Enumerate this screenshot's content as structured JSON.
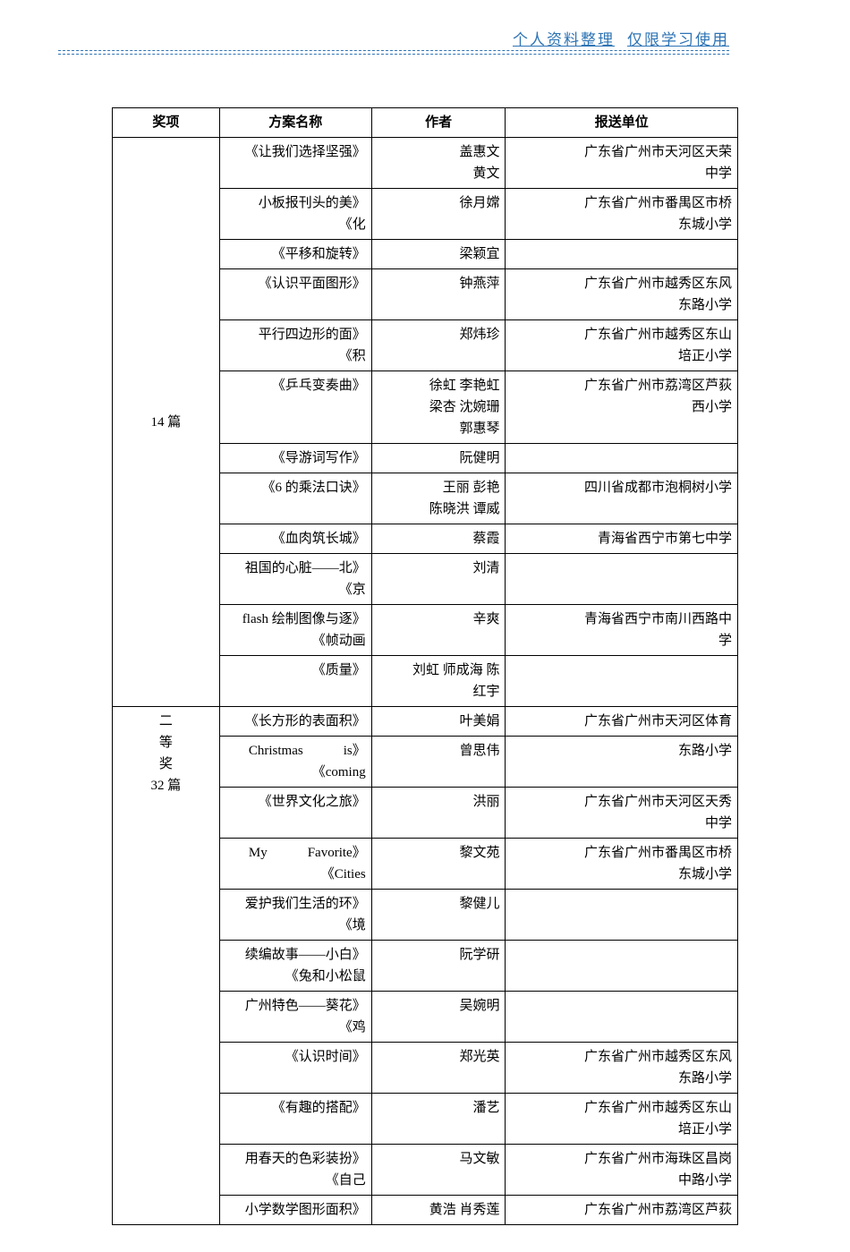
{
  "header": {
    "left": "个人资料整理",
    "right": "仅限学习使用"
  },
  "table": {
    "headers": {
      "award": "奖项",
      "plan": "方案名称",
      "author": "作者",
      "org": "报送单位"
    },
    "groups": [
      {
        "award_lines": [
          "14 篇"
        ],
        "rows": [
          {
            "plan_lines": [
              "《让我们选择坚强》"
            ],
            "author_lines": [
              "盖惠文",
              "黄文"
            ],
            "org_lines": [
              "广东省广州市天河区天荣",
              "中学"
            ]
          },
          {
            "plan_lines": [
              "小板报刊头的美》",
              "《化"
            ],
            "author_lines": [
              "徐月嫦"
            ],
            "org_lines": [
              "广东省广州市番禺区市桥",
              "东城小学"
            ]
          },
          {
            "plan_lines": [
              "《平移和旋转》"
            ],
            "author_lines": [
              "梁颖宜"
            ],
            "org_lines": [
              ""
            ]
          },
          {
            "plan_lines": [
              "《认识平面图形》"
            ],
            "author_lines": [
              "钟燕萍"
            ],
            "org_lines": [
              "广东省广州市越秀区东风",
              "东路小学"
            ]
          },
          {
            "plan_lines": [
              "平行四边形的面》",
              "《积"
            ],
            "author_lines": [
              "郑炜珍"
            ],
            "org_lines": [
              "广东省广州市越秀区东山",
              "培正小学"
            ]
          },
          {
            "plan_lines": [
              "《乒乓变奏曲》"
            ],
            "author_lines": [
              "徐虹 李艳虹",
              "梁杏 沈婉珊",
              "郭惠琴"
            ],
            "org_lines": [
              "广东省广州市荔湾区芦荻",
              "西小学"
            ]
          },
          {
            "plan_lines": [
              "《导游词写作》"
            ],
            "author_lines": [
              "阮健明"
            ],
            "org_lines": [
              ""
            ]
          },
          {
            "plan_lines": [
              "《6 的乘法口诀》"
            ],
            "author_lines": [
              "王丽 彭艳",
              "陈晓洪 谭威"
            ],
            "org_lines": [
              "四川省成都市泡桐树小学"
            ]
          },
          {
            "plan_lines": [
              "《血肉筑长城》"
            ],
            "author_lines": [
              "蔡霞"
            ],
            "org_lines": [
              "青海省西宁市第七中学"
            ]
          },
          {
            "plan_lines": [
              "祖国的心脏――北》",
              "《京"
            ],
            "author_lines": [
              "刘清"
            ],
            "org_lines": [
              ""
            ]
          },
          {
            "plan_lines": [
              "flash 绘制图像与逐》",
              "《帧动画"
            ],
            "author_lines": [
              "辛爽"
            ],
            "org_lines": [
              "青海省西宁市南川西路中",
              "学"
            ]
          },
          {
            "plan_lines": [
              "《质量》"
            ],
            "author_lines": [
              "刘虹 师成海 陈",
              "红宇"
            ],
            "org_lines": [
              ""
            ]
          }
        ]
      },
      {
        "award_lines": [
          "二",
          "等",
          "奖",
          "32 篇"
        ],
        "rows": [
          {
            "plan_lines": [
              "《长方形的表面积》"
            ],
            "author_lines": [
              "叶美娟"
            ],
            "org_lines": [
              "广东省广州市天河区体育"
            ]
          },
          {
            "plan_lines": [
              "Christmas　　　is》",
              "《coming"
            ],
            "author_lines": [
              "曾思伟"
            ],
            "org_lines": [
              "东路小学"
            ]
          },
          {
            "plan_lines": [
              "《世界文化之旅》"
            ],
            "author_lines": [
              "洪丽"
            ],
            "org_lines": [
              "广东省广州市天河区天秀",
              "中学"
            ]
          },
          {
            "plan_lines": [
              "My　　　Favorite》",
              "《Cities"
            ],
            "author_lines": [
              "黎文苑"
            ],
            "org_lines": [
              "广东省广州市番禺区市桥",
              "东城小学"
            ]
          },
          {
            "plan_lines": [
              "爱护我们生活的环》",
              "《境"
            ],
            "author_lines": [
              "黎健儿"
            ],
            "org_lines": [
              ""
            ]
          },
          {
            "plan_lines": [
              "续编故事――小白》",
              "《兔和小松鼠"
            ],
            "author_lines": [
              "阮学研"
            ],
            "org_lines": [
              ""
            ]
          },
          {
            "plan_lines": [
              "广州特色――葵花》",
              "《鸡"
            ],
            "author_lines": [
              "吴婉明"
            ],
            "org_lines": [
              ""
            ]
          },
          {
            "plan_lines": [
              "《认识时间》"
            ],
            "author_lines": [
              "郑光英"
            ],
            "org_lines": [
              "广东省广州市越秀区东风",
              "东路小学"
            ]
          },
          {
            "plan_lines": [
              "《有趣的搭配》"
            ],
            "author_lines": [
              "潘艺"
            ],
            "org_lines": [
              "广东省广州市越秀区东山",
              "培正小学"
            ]
          },
          {
            "plan_lines": [
              "用春天的色彩装扮》",
              "《自己"
            ],
            "author_lines": [
              "马文敏"
            ],
            "org_lines": [
              "广东省广州市海珠区昌岗",
              "中路小学"
            ]
          },
          {
            "plan_lines": [
              "小学数学图形面积》"
            ],
            "author_lines": [
              "黄浩 肖秀莲"
            ],
            "org_lines": [
              "广东省广州市荔湾区芦荻"
            ]
          }
        ]
      }
    ]
  }
}
